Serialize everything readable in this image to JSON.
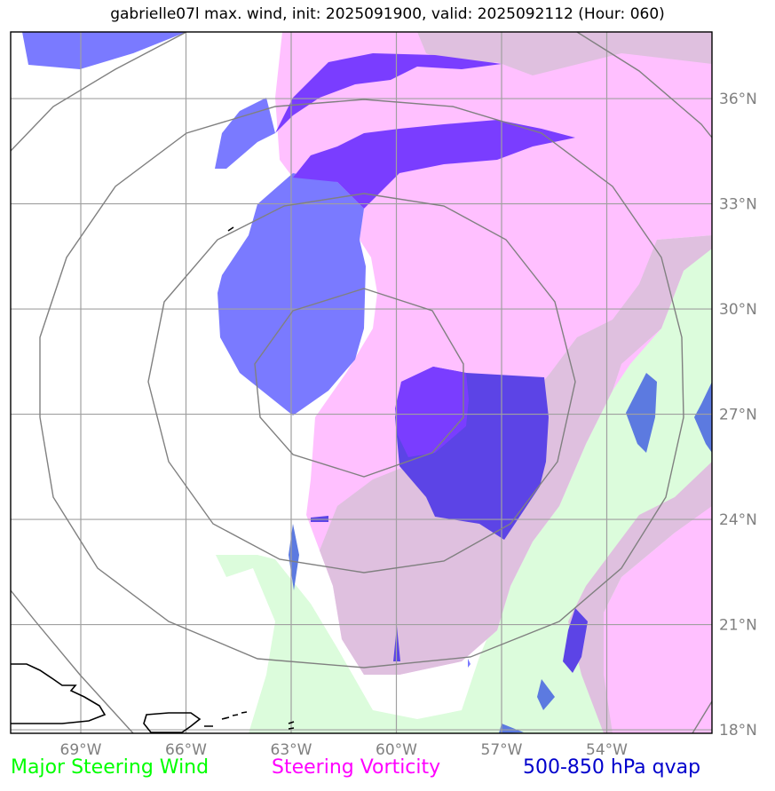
{
  "title": "gabrielle07l max. wind, init: 2025091900, valid: 2025092112 (Hour: 060)",
  "map": {
    "lon_ticks": [
      {
        "value": -69,
        "label": "69°W"
      },
      {
        "value": -66,
        "label": "66°W"
      },
      {
        "value": -63,
        "label": "63°W"
      },
      {
        "value": -60,
        "label": "60°W"
      },
      {
        "value": -57,
        "label": "57°W"
      },
      {
        "value": -54,
        "label": "54°W"
      }
    ],
    "lat_ticks": [
      {
        "value": 36,
        "label": "36°N"
      },
      {
        "value": 33,
        "label": "33°N"
      },
      {
        "value": 30,
        "label": "30°N"
      },
      {
        "value": 27,
        "label": "27°N"
      },
      {
        "value": 24,
        "label": "24°N"
      },
      {
        "value": 21,
        "label": "21°N"
      },
      {
        "value": 18,
        "label": "18°N"
      }
    ],
    "extent": {
      "lon": [
        -71,
        -51
      ],
      "lat": [
        17.9,
        37.9
      ]
    },
    "colors": {
      "steering_wind": "#00ff00",
      "steering_vorticity": "#ff00ff",
      "qvap": "#0000cc",
      "grid": "#a0a0a0",
      "range_rings": "#808080"
    }
  },
  "legend": {
    "wind": {
      "label": "Major Steering Wind",
      "color": "#00ff00"
    },
    "vorticity": {
      "label": "Steering Vorticity",
      "color": "#ff00ff"
    },
    "qvap": {
      "label": "500-850 hPa qvap",
      "color": "#0000cc"
    }
  }
}
